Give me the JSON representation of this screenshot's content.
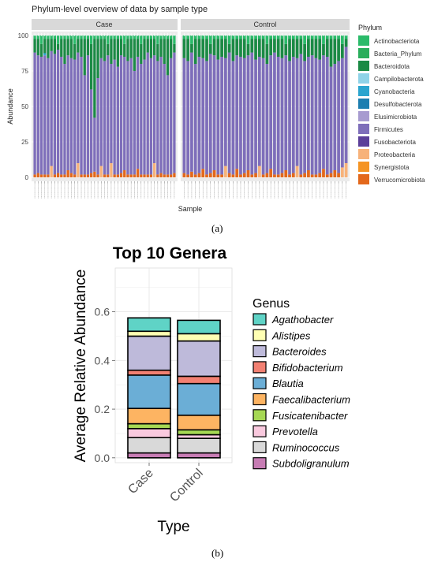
{
  "captions": {
    "a": "(a)",
    "b": "(b)"
  },
  "chart_data": [
    {
      "type": "bar",
      "stacked": true,
      "title": "Phylum-level overview of data by sample type",
      "xlabel": "Sample",
      "ylabel": "Abundance",
      "ylim": [
        0,
        100
      ],
      "yticks": [
        0,
        25,
        50,
        75,
        100
      ],
      "grid": true,
      "legend_position": "right",
      "facets": [
        "Case",
        "Control"
      ],
      "legend": {
        "title": "Phylum",
        "items": [
          {
            "name": "Actinobacteriota",
            "color": "#2BBB6A"
          },
          {
            "name": "Bacteria_Phylum",
            "color": "#2AAE5C"
          },
          {
            "name": "Bacteroidota",
            "color": "#1B8A45"
          },
          {
            "name": "Campilobacterota",
            "color": "#8FD3E8"
          },
          {
            "name": "Cyanobacteria",
            "color": "#2BA5CF"
          },
          {
            "name": "Desulfobacterota",
            "color": "#1D7EB0"
          },
          {
            "name": "Elusimicrobiota",
            "color": "#A79BD0"
          },
          {
            "name": "Firmicutes",
            "color": "#7E6EBA"
          },
          {
            "name": "Fusobacteriota",
            "color": "#5B3F99"
          },
          {
            "name": "Proteobacteria",
            "color": "#F7B27A"
          },
          {
            "name": "Synergistota",
            "color": "#F59424"
          },
          {
            "name": "Verrucomicrobiota",
            "color": "#E3681B"
          }
        ]
      },
      "series_order_bottom_to_top": [
        "Verrucomicrobiota",
        "Synergistota",
        "Proteobacteria",
        "Fusobacteriota",
        "Firmicutes",
        "Elusimicrobiota",
        "Desulfobacterota",
        "Cyanobacteria",
        "Campilobacterota",
        "Bacteroidota",
        "Bacteria_Phylum",
        "Actinobacteriota"
      ],
      "panels": [
        {
          "facet": "Case",
          "firmicutes_top": [
            88,
            86,
            85,
            86,
            84,
            89,
            87,
            90,
            85,
            80,
            86,
            84,
            83,
            88,
            85,
            72,
            86,
            62,
            42,
            70,
            84,
            82,
            86,
            80,
            83,
            78,
            86,
            85,
            82,
            84,
            75,
            85,
            80,
            83,
            88,
            84,
            86,
            82,
            85,
            80,
            72,
            84,
            88
          ],
          "orange_height": [
            2,
            3,
            2,
            2,
            2,
            8,
            2,
            3,
            2,
            2,
            5,
            3,
            2,
            10,
            2,
            2,
            2,
            3,
            4,
            2,
            8,
            2,
            2,
            10,
            2,
            2,
            3,
            5,
            2,
            2,
            2,
            6,
            2,
            2,
            2,
            2,
            10,
            2,
            3,
            2,
            2,
            2,
            3
          ],
          "cyan_height": [
            0,
            0,
            0,
            1.5,
            0,
            0,
            0,
            0,
            0,
            0,
            0,
            0,
            0,
            0,
            0,
            0,
            0,
            0,
            0,
            0,
            0,
            0,
            0,
            0,
            0,
            0,
            0,
            0,
            0,
            0,
            0,
            0,
            0,
            0,
            0,
            0,
            0,
            0,
            0,
            0,
            0,
            0,
            0
          ]
        },
        {
          "facet": "Control",
          "firmicutes_top": [
            84,
            82,
            88,
            80,
            85,
            84,
            82,
            87,
            86,
            83,
            85,
            84,
            88,
            82,
            86,
            85,
            84,
            86,
            88,
            83,
            85,
            84,
            80,
            86,
            88,
            85,
            84,
            86,
            82,
            85,
            84,
            87,
            82,
            85,
            86,
            84,
            83,
            86,
            85,
            78,
            80,
            82,
            84,
            92
          ],
          "orange_height": [
            3,
            2,
            4,
            2,
            3,
            6,
            2,
            3,
            5,
            2,
            2,
            8,
            3,
            2,
            6,
            2,
            3,
            5,
            2,
            3,
            8,
            2,
            3,
            6,
            2,
            2,
            3,
            5,
            2,
            3,
            8,
            2,
            3,
            5,
            2,
            2,
            3,
            6,
            2,
            3,
            5,
            3,
            7,
            10
          ],
          "cyan_height": [
            0,
            0,
            0,
            0,
            0,
            0,
            0,
            0,
            0,
            0,
            0,
            0,
            0,
            0,
            0,
            0,
            0,
            0,
            0,
            0,
            0,
            0,
            0,
            0,
            0,
            0,
            0,
            0,
            0,
            0,
            0,
            0,
            0,
            0,
            0,
            0,
            0,
            0,
            0,
            0,
            0,
            0,
            0,
            0
          ]
        }
      ]
    },
    {
      "type": "bar",
      "stacked": true,
      "title": "Top 10 Genera",
      "xlabel": "Type",
      "ylabel": "Average Relative Abundance",
      "ylim": [
        -0.02,
        0.78
      ],
      "yticks": [
        0.0,
        0.2,
        0.4,
        0.6
      ],
      "ytick_labels": [
        "0.0",
        "0.2",
        "0.4",
        "0.6"
      ],
      "grid": true,
      "legend_position": "right",
      "legend_title": "Genus",
      "categories": [
        "Case",
        "Control"
      ],
      "series": [
        {
          "name": "Subdoligranulum",
          "color": "#C77CB4",
          "values": [
            0.02,
            0.02
          ]
        },
        {
          "name": "Ruminococcus",
          "color": "#D9D9D9",
          "values": [
            0.063,
            0.06
          ]
        },
        {
          "name": "Prevotella",
          "color": "#F9C9DE",
          "values": [
            0.037,
            0.015
          ]
        },
        {
          "name": "Fusicatenibacter",
          "color": "#A6D854",
          "values": [
            0.02,
            0.02
          ]
        },
        {
          "name": "Faecalibacterium",
          "color": "#FDB462",
          "values": [
            0.063,
            0.06
          ]
        },
        {
          "name": "Blautia",
          "color": "#6BAED6",
          "values": [
            0.137,
            0.13
          ]
        },
        {
          "name": "Bifidobacterium",
          "color": "#F28072",
          "values": [
            0.02,
            0.03
          ]
        },
        {
          "name": "Bacteroides",
          "color": "#BEBADA",
          "values": [
            0.14,
            0.145
          ]
        },
        {
          "name": "Alistipes",
          "color": "#FFFFB3",
          "values": [
            0.02,
            0.03
          ]
        },
        {
          "name": "Agathobacter",
          "color": "#5FD3C6",
          "values": [
            0.055,
            0.055
          ]
        }
      ],
      "legend_order": [
        "Agathobacter",
        "Alistipes",
        "Bacteroides",
        "Bifidobacterium",
        "Blautia",
        "Faecalibacterium",
        "Fusicatenibacter",
        "Prevotella",
        "Ruminococcus",
        "Subdoligranulum"
      ]
    }
  ]
}
